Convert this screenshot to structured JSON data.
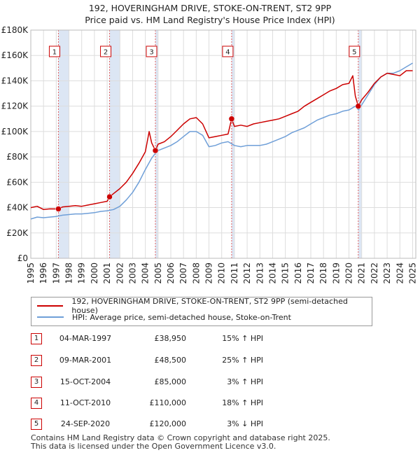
{
  "title": "192, HOVERINGHAM DRIVE, STOKE-ON-TRENT, ST2 9PP",
  "subtitle": "Price paid vs. HM Land Registry's House Price Index (HPI)",
  "colors": {
    "property": "#cc0000",
    "hpi": "#6f9fd8",
    "band": "#dce6f4",
    "marker": "#cc0000"
  },
  "chart_data": {
    "type": "line",
    "ylim": [
      0,
      180000
    ],
    "xlim": [
      1995,
      2025.25
    ],
    "y_ticks": [
      0,
      20000,
      40000,
      60000,
      80000,
      100000,
      120000,
      140000,
      160000,
      180000
    ],
    "y_tick_labels": [
      "£0",
      "£20K",
      "£40K",
      "£60K",
      "£80K",
      "£100K",
      "£120K",
      "£140K",
      "£160K",
      "£180K"
    ],
    "x_ticks": [
      1995,
      1996,
      1997,
      1998,
      1999,
      2000,
      2001,
      2002,
      2003,
      2004,
      2005,
      2006,
      2007,
      2008,
      2009,
      2010,
      2011,
      2012,
      2013,
      2014,
      2015,
      2016,
      2017,
      2018,
      2019,
      2020,
      2021,
      2022,
      2023,
      2024,
      2025
    ],
    "grid": true,
    "series": [
      {
        "name": "192, HOVERINGHAM DRIVE, STOKE-ON-TRENT, ST2 9PP (semi-detached house)",
        "color": "#cc0000",
        "x": [
          1995.0,
          1995.5,
          1996.0,
          1996.5,
          1997.17,
          1997.5,
          1998.0,
          1998.5,
          1999.0,
          1999.5,
          2000.0,
          2000.5,
          2001.0,
          2001.19,
          2001.5,
          2002.0,
          2002.5,
          2003.0,
          2003.5,
          2004.0,
          2004.3,
          2004.5,
          2004.79,
          2005.0,
          2005.5,
          2006.0,
          2006.5,
          2007.0,
          2007.5,
          2008.0,
          2008.5,
          2009.0,
          2009.5,
          2010.0,
          2010.5,
          2010.78,
          2011.0,
          2011.5,
          2012.0,
          2012.5,
          2013.0,
          2013.5,
          2014.0,
          2014.5,
          2015.0,
          2015.5,
          2016.0,
          2016.5,
          2017.0,
          2017.5,
          2018.0,
          2018.5,
          2019.0,
          2019.5,
          2020.0,
          2020.3,
          2020.5,
          2020.73,
          2021.0,
          2021.5,
          2022.0,
          2022.5,
          2023.0,
          2023.5,
          2024.0,
          2024.5,
          2025.0
        ],
        "y": [
          40000,
          41000,
          38500,
          39000,
          38950,
          40500,
          41000,
          41500,
          41000,
          42000,
          43000,
          44000,
          45000,
          48500,
          51000,
          55000,
          60000,
          67000,
          75000,
          84000,
          100000,
          91000,
          85000,
          90000,
          92000,
          96000,
          101000,
          106000,
          110000,
          111000,
          106000,
          95000,
          96000,
          97000,
          98000,
          110000,
          104000,
          105000,
          104000,
          106000,
          107000,
          108000,
          109000,
          110000,
          112000,
          114000,
          116000,
          120000,
          123000,
          126000,
          129000,
          132000,
          134000,
          137000,
          138000,
          144000,
          128000,
          120000,
          125000,
          131000,
          138000,
          143000,
          146000,
          145000,
          144000,
          148000,
          148000
        ]
      },
      {
        "name": "HPI: Average price, semi-detached house, Stoke-on-Trent",
        "color": "#6f9fd8",
        "x": [
          1995.0,
          1995.5,
          1996.0,
          1996.5,
          1997.0,
          1997.5,
          1998.0,
          1998.5,
          1999.0,
          1999.5,
          2000.0,
          2000.5,
          2001.0,
          2001.5,
          2002.0,
          2002.5,
          2003.0,
          2003.5,
          2004.0,
          2004.5,
          2004.8,
          2005.0,
          2005.5,
          2006.0,
          2006.5,
          2007.0,
          2007.5,
          2008.0,
          2008.5,
          2009.0,
          2009.5,
          2010.0,
          2010.5,
          2011.0,
          2011.5,
          2012.0,
          2012.5,
          2013.0,
          2013.5,
          2014.0,
          2014.5,
          2015.0,
          2015.5,
          2016.0,
          2016.5,
          2017.0,
          2017.5,
          2018.0,
          2018.5,
          2019.0,
          2019.5,
          2020.0,
          2020.5,
          2020.75,
          2021.0,
          2021.5,
          2022.0,
          2022.5,
          2023.0,
          2023.5,
          2024.0,
          2024.5,
          2025.0
        ],
        "y": [
          31000,
          32500,
          32000,
          32500,
          33000,
          34000,
          34500,
          35000,
          35000,
          35500,
          36000,
          37000,
          37500,
          38500,
          41000,
          46000,
          52000,
          60000,
          70000,
          79000,
          83000,
          85000,
          87000,
          89000,
          92000,
          96000,
          100000,
          100000,
          97000,
          88000,
          89000,
          91000,
          92000,
          89000,
          88000,
          89000,
          89000,
          89000,
          90000,
          92000,
          94000,
          96000,
          99000,
          101000,
          103000,
          106000,
          109000,
          111000,
          113000,
          114000,
          116000,
          117000,
          120000,
          117000,
          121000,
          129000,
          137000,
          143000,
          146000,
          146000,
          148000,
          151000,
          154000
        ]
      }
    ],
    "sales": [
      {
        "label": "1",
        "x": 1997.17,
        "price": 38950
      },
      {
        "label": "2",
        "x": 2001.19,
        "price": 48500
      },
      {
        "label": "3",
        "x": 2004.79,
        "price": 85000
      },
      {
        "label": "4",
        "x": 2010.78,
        "price": 110000
      },
      {
        "label": "5",
        "x": 2020.73,
        "price": 120000
      }
    ]
  },
  "legend": {
    "property": "192, HOVERINGHAM DRIVE, STOKE-ON-TRENT, ST2 9PP (semi-detached house)",
    "hpi": "HPI: Average price, semi-detached house, Stoke-on-Trent"
  },
  "sales_table": [
    {
      "num": "1",
      "date": "04-MAR-1997",
      "price": "£38,950",
      "hpi": "15% ↑ HPI"
    },
    {
      "num": "2",
      "date": "09-MAR-2001",
      "price": "£48,500",
      "hpi": "25% ↑ HPI"
    },
    {
      "num": "3",
      "date": "15-OCT-2004",
      "price": "£85,000",
      "hpi": "3% ↑ HPI"
    },
    {
      "num": "4",
      "date": "11-OCT-2010",
      "price": "£110,000",
      "hpi": "18% ↑ HPI"
    },
    {
      "num": "5",
      "date": "24-SEP-2020",
      "price": "£120,000",
      "hpi": "3% ↓ HPI"
    }
  ],
  "footer": {
    "line1": "Contains HM Land Registry data © Crown copyright and database right 2025.",
    "line2": "This data is licensed under the Open Government Licence v3.0."
  }
}
